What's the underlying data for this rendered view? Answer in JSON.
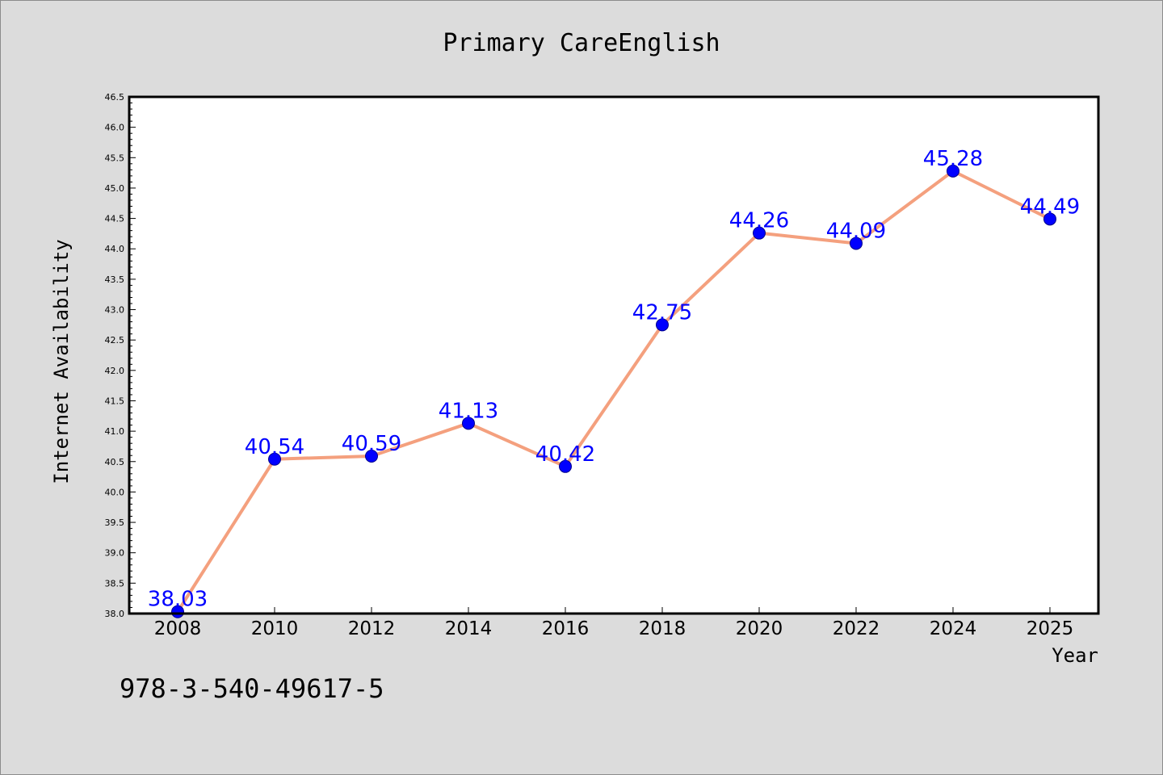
{
  "colors": {
    "page_background": "#dcdcdc",
    "plot_background": "#ffffff",
    "line": "#f4a07e",
    "marker_fill": "#0000ff",
    "data_label": "#0000ff",
    "axes": "#000000"
  },
  "footer_text": "978-3-540-49617-5",
  "chart_data": {
    "type": "line",
    "title": "Primary CareEnglish",
    "xlabel": "Year",
    "ylabel": "Internet Availability",
    "x": [
      "2008",
      "2010",
      "2012",
      "2014",
      "2016",
      "2018",
      "2020",
      "2022",
      "2024",
      "2025"
    ],
    "series": [
      {
        "values": [
          38.03,
          40.54,
          40.59,
          41.13,
          40.42,
          42.75,
          44.26,
          44.09,
          45.28,
          44.49
        ],
        "labels": [
          "38.03",
          "40.54",
          "40.59",
          "41.13",
          "40.42",
          "42.75",
          "44.26",
          "44.09",
          "45.28",
          "44.49"
        ]
      }
    ],
    "ylim": [
      38.0,
      46.5
    ],
    "yticks": [
      "38.0",
      "38.5",
      "39.0",
      "39.5",
      "40.0",
      "40.5",
      "41.0",
      "41.5",
      "42.0",
      "42.5",
      "43.0",
      "43.5",
      "44.0",
      "44.5",
      "45.0",
      "45.5",
      "46.0",
      "46.5"
    ],
    "grid": false,
    "legend": "none"
  }
}
